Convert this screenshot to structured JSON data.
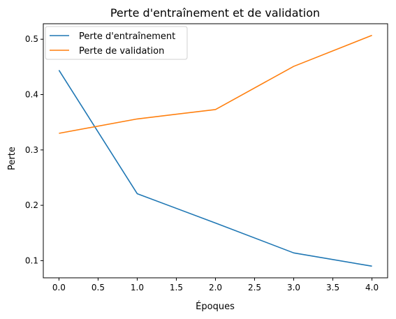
{
  "chart_data": {
    "type": "line",
    "title": "Perte d'entraînement et de validation",
    "xlabel": "Époques",
    "ylabel": "Perte",
    "x": [
      0,
      1,
      2,
      3,
      4
    ],
    "series": [
      {
        "name": "Perte d'entraînement",
        "color": "#1f77b4",
        "values": [
          0.444,
          0.221,
          0.168,
          0.114,
          0.09
        ]
      },
      {
        "name": "Perte de validation",
        "color": "#ff7f0e",
        "values": [
          0.33,
          0.356,
          0.373,
          0.451,
          0.507
        ]
      }
    ],
    "xlim": [
      -0.2,
      4.2
    ],
    "ylim": [
      0.069,
      0.528
    ],
    "xticks": [
      0.0,
      0.5,
      1.0,
      1.5,
      2.0,
      2.5,
      3.0,
      3.5,
      4.0
    ],
    "xtick_labels": [
      "0.0",
      "0.5",
      "1.0",
      "1.5",
      "2.0",
      "2.5",
      "3.0",
      "3.5",
      "4.0"
    ],
    "yticks": [
      0.1,
      0.2,
      0.3,
      0.4,
      0.5
    ],
    "ytick_labels": [
      "0.1",
      "0.2",
      "0.3",
      "0.4",
      "0.5"
    ],
    "legend_position": "top-left",
    "grid": false
  }
}
